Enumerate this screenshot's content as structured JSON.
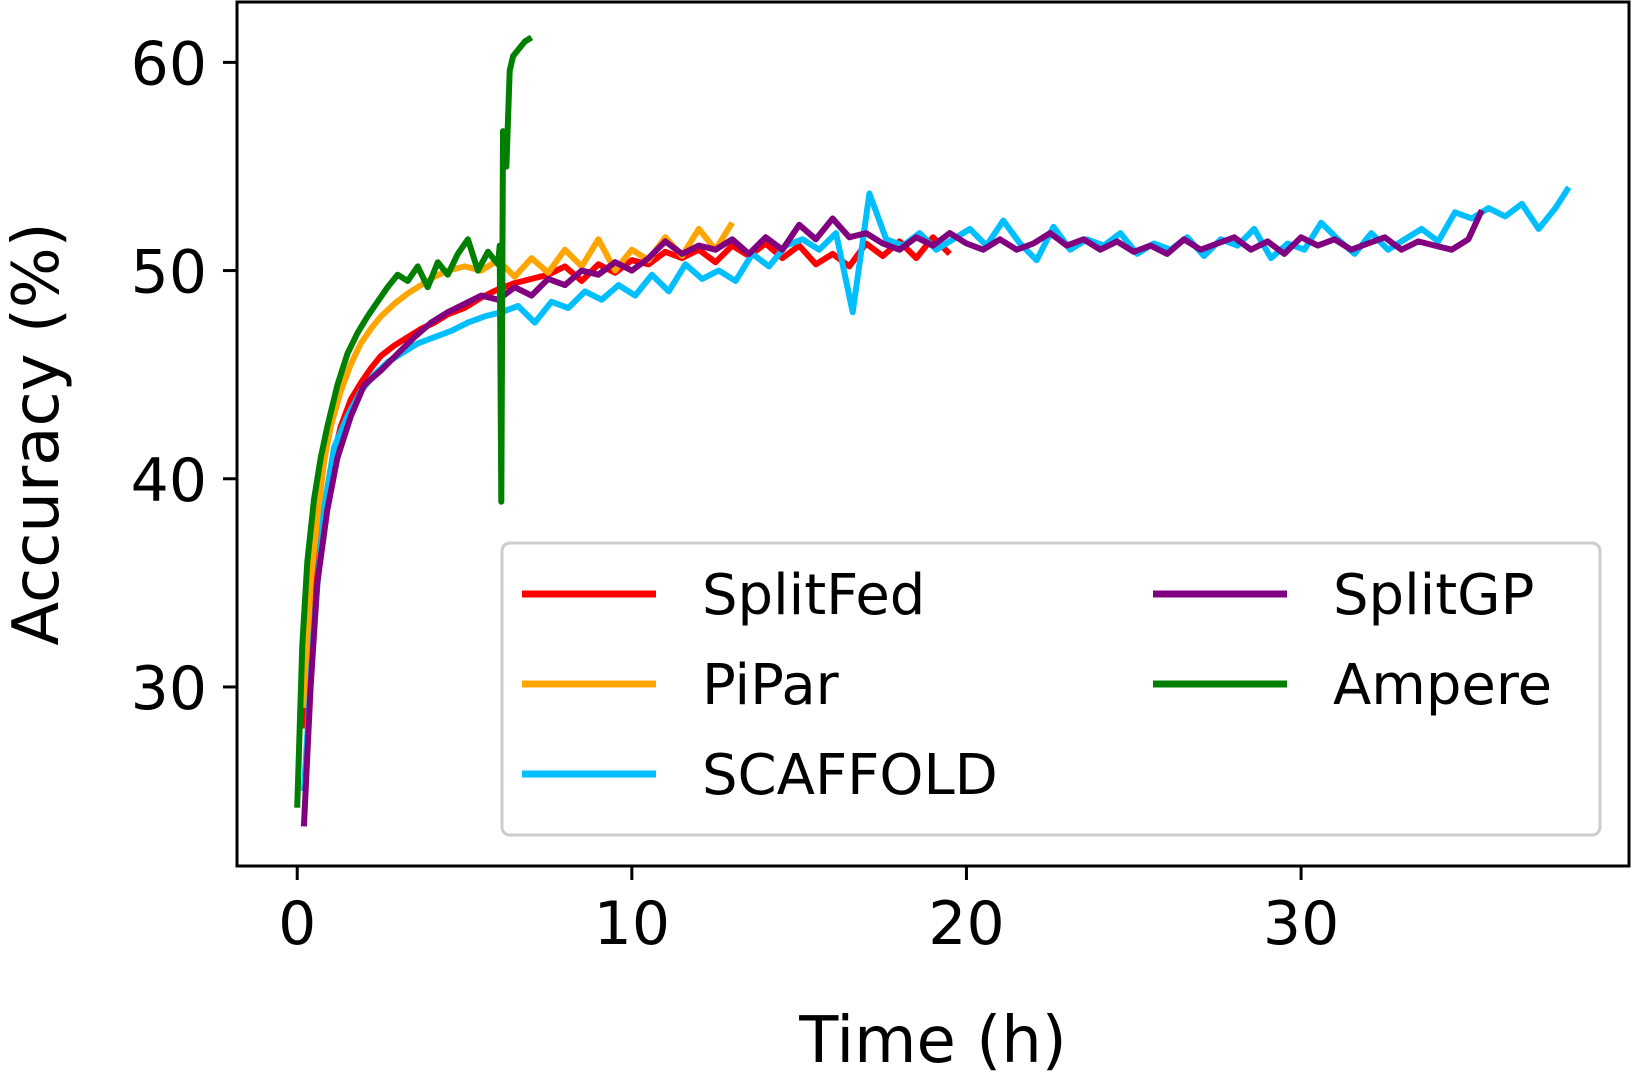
{
  "chart_data": {
    "type": "line",
    "title": "",
    "xlabel": "Time (h)",
    "ylabel": "Accuracy (%)",
    "xlim": [
      -1.8,
      39.8
    ],
    "ylim": [
      21.4,
      62.9
    ],
    "x_ticks": [
      0,
      10,
      20,
      30
    ],
    "y_ticks": [
      30,
      40,
      50,
      60
    ],
    "grid": false,
    "legend_position": "lower-right",
    "legend_columns": 2,
    "series": [
      {
        "name": "SplitFed",
        "color": "#ff0000",
        "x": [
          0.2,
          0.4,
          0.6,
          0.8,
          1.0,
          1.3,
          1.6,
          1.9,
          2.2,
          2.5,
          2.9,
          3.3,
          3.7,
          4.1,
          4.5,
          5.0,
          5.5,
          6.0,
          6.5,
          7.0,
          7.5,
          8.0,
          8.5,
          9.0,
          9.5,
          10.0,
          10.5,
          11.0,
          11.5,
          12.0,
          12.5,
          13.0,
          13.5,
          14.0,
          14.5,
          15.0,
          15.5,
          16.0,
          16.5,
          17.0,
          17.5,
          18.0,
          18.5,
          19.0,
          19.5
        ],
        "y": [
          28.0,
          33.0,
          36.5,
          38.5,
          40.5,
          42.5,
          43.8,
          44.6,
          45.3,
          45.9,
          46.4,
          46.8,
          47.2,
          47.5,
          47.9,
          48.2,
          48.7,
          49.1,
          49.4,
          49.6,
          49.8,
          50.2,
          49.5,
          50.3,
          49.9,
          50.5,
          50.3,
          50.9,
          50.6,
          51.0,
          50.4,
          51.2,
          50.7,
          51.3,
          50.6,
          51.2,
          50.3,
          50.8,
          50.2,
          51.3,
          50.7,
          51.4,
          50.6,
          51.6,
          50.8
        ]
      },
      {
        "name": "PiPar",
        "color": "#ffa500",
        "x": [
          0.2,
          0.4,
          0.6,
          0.8,
          1.0,
          1.3,
          1.6,
          1.9,
          2.2,
          2.5,
          2.9,
          3.3,
          3.7,
          4.1,
          4.5,
          5.0,
          5.5,
          6.0,
          6.5,
          7.0,
          7.5,
          8.0,
          8.5,
          9.0,
          9.5,
          10.0,
          10.5,
          11.0,
          11.5,
          12.0,
          12.5,
          13.0
        ],
        "y": [
          29.0,
          35.0,
          38.0,
          40.8,
          42.5,
          44.2,
          45.5,
          46.5,
          47.2,
          47.8,
          48.4,
          48.9,
          49.3,
          49.7,
          50.0,
          50.2,
          50.0,
          50.5,
          49.7,
          50.6,
          49.9,
          51.0,
          50.2,
          51.5,
          50.0,
          51.0,
          50.5,
          51.6,
          50.7,
          52.0,
          51.0,
          52.3
        ]
      },
      {
        "name": "SCAFFOLD",
        "color": "#00bfff",
        "x": [
          0.2,
          0.5,
          0.8,
          1.1,
          1.5,
          1.9,
          2.3,
          2.7,
          3.1,
          3.6,
          4.1,
          4.6,
          5.1,
          5.6,
          6.1,
          6.6,
          7.1,
          7.6,
          8.1,
          8.6,
          9.1,
          9.6,
          10.1,
          10.6,
          11.1,
          11.6,
          12.1,
          12.6,
          13.1,
          13.6,
          14.1,
          14.6,
          15.1,
          15.6,
          16.1,
          16.6,
          17.1,
          17.6,
          18.1,
          18.6,
          19.1,
          19.6,
          20.1,
          20.6,
          21.1,
          21.6,
          22.1,
          22.6,
          23.1,
          23.6,
          24.1,
          24.6,
          25.1,
          25.6,
          26.1,
          26.6,
          27.1,
          27.6,
          28.1,
          28.6,
          29.1,
          29.6,
          30.1,
          30.6,
          31.1,
          31.6,
          32.1,
          32.6,
          33.1,
          33.6,
          34.1,
          34.6,
          35.1,
          35.6,
          36.1,
          36.6,
          37.1,
          37.6,
          38.0
        ],
        "y": [
          25.0,
          33.0,
          38.5,
          41.5,
          43.0,
          44.2,
          45.0,
          45.6,
          46.0,
          46.5,
          46.8,
          47.1,
          47.5,
          47.8,
          48.0,
          48.3,
          47.5,
          48.5,
          48.2,
          49.0,
          48.6,
          49.3,
          48.8,
          49.8,
          49.0,
          50.3,
          49.6,
          50.0,
          49.5,
          50.8,
          50.2,
          51.2,
          51.5,
          51.0,
          51.8,
          48.0,
          53.7,
          51.5,
          51.2,
          51.8,
          51.0,
          51.5,
          52.0,
          51.2,
          52.4,
          51.3,
          50.5,
          52.1,
          51.0,
          51.5,
          51.2,
          51.8,
          50.8,
          51.3,
          51.0,
          51.6,
          50.7,
          51.5,
          51.2,
          52.0,
          50.6,
          51.3,
          51.0,
          52.3,
          51.5,
          50.8,
          51.8,
          51.0,
          51.5,
          52.0,
          51.4,
          52.8,
          52.5,
          53.0,
          52.6,
          53.2,
          52.0,
          53.0,
          54.0
        ]
      },
      {
        "name": "SplitGP",
        "color": "#800080",
        "x": [
          0.2,
          0.4,
          0.6,
          0.9,
          1.2,
          1.6,
          2.0,
          2.5,
          3.0,
          3.5,
          4.0,
          4.5,
          5.0,
          5.5,
          6.0,
          6.5,
          7.0,
          7.5,
          8.0,
          8.5,
          9.0,
          9.5,
          10.0,
          10.5,
          11.0,
          11.5,
          12.0,
          12.5,
          13.0,
          13.5,
          14.0,
          14.5,
          15.0,
          15.5,
          16.0,
          16.5,
          17.0,
          17.5,
          18.0,
          18.5,
          19.0,
          19.5,
          20.0,
          20.5,
          21.0,
          21.5,
          22.0,
          22.5,
          23.0,
          23.5,
          24.0,
          24.5,
          25.0,
          25.5,
          26.0,
          26.5,
          27.0,
          27.5,
          28.0,
          28.5,
          29.0,
          29.5,
          30.0,
          30.5,
          31.0,
          31.5,
          32.0,
          32.5,
          33.0,
          33.5,
          34.0,
          34.5,
          35.0,
          35.4
        ],
        "y": [
          23.3,
          30.0,
          35.0,
          38.5,
          41.0,
          43.0,
          44.5,
          45.2,
          46.0,
          46.8,
          47.5,
          48.0,
          48.4,
          48.8,
          48.6,
          49.2,
          48.8,
          49.6,
          49.3,
          50.0,
          49.8,
          50.4,
          50.0,
          50.6,
          51.4,
          50.8,
          51.2,
          51.0,
          51.5,
          50.8,
          51.6,
          51.0,
          52.2,
          51.5,
          52.5,
          51.6,
          51.8,
          51.3,
          51.0,
          51.6,
          51.2,
          51.8,
          51.3,
          51.0,
          51.5,
          51.0,
          51.3,
          51.8,
          51.2,
          51.5,
          51.0,
          51.4,
          50.9,
          51.2,
          50.8,
          51.5,
          51.0,
          51.3,
          51.6,
          51.0,
          51.4,
          50.8,
          51.6,
          51.2,
          51.5,
          51.0,
          51.3,
          51.6,
          51.0,
          51.4,
          51.2,
          51.0,
          51.5,
          52.9
        ]
      },
      {
        "name": "Ampere",
        "color": "#008000",
        "x": [
          0.0,
          0.15,
          0.3,
          0.5,
          0.7,
          0.9,
          1.2,
          1.5,
          1.8,
          2.1,
          2.4,
          2.7,
          3.0,
          3.3,
          3.6,
          3.9,
          4.2,
          4.5,
          4.8,
          5.1,
          5.4,
          5.7,
          6.0,
          6.05,
          6.1,
          6.15,
          6.25,
          6.35,
          6.45,
          6.6,
          6.8,
          7.0
        ],
        "y": [
          24.2,
          32.0,
          36.0,
          39.0,
          41.0,
          42.5,
          44.5,
          46.0,
          47.0,
          47.8,
          48.5,
          49.2,
          49.8,
          49.5,
          50.2,
          49.2,
          50.4,
          49.8,
          50.8,
          51.5,
          50.0,
          50.9,
          50.3,
          51.2,
          38.9,
          56.7,
          55.0,
          59.6,
          60.3,
          60.6,
          61.0,
          61.2
        ]
      }
    ]
  }
}
